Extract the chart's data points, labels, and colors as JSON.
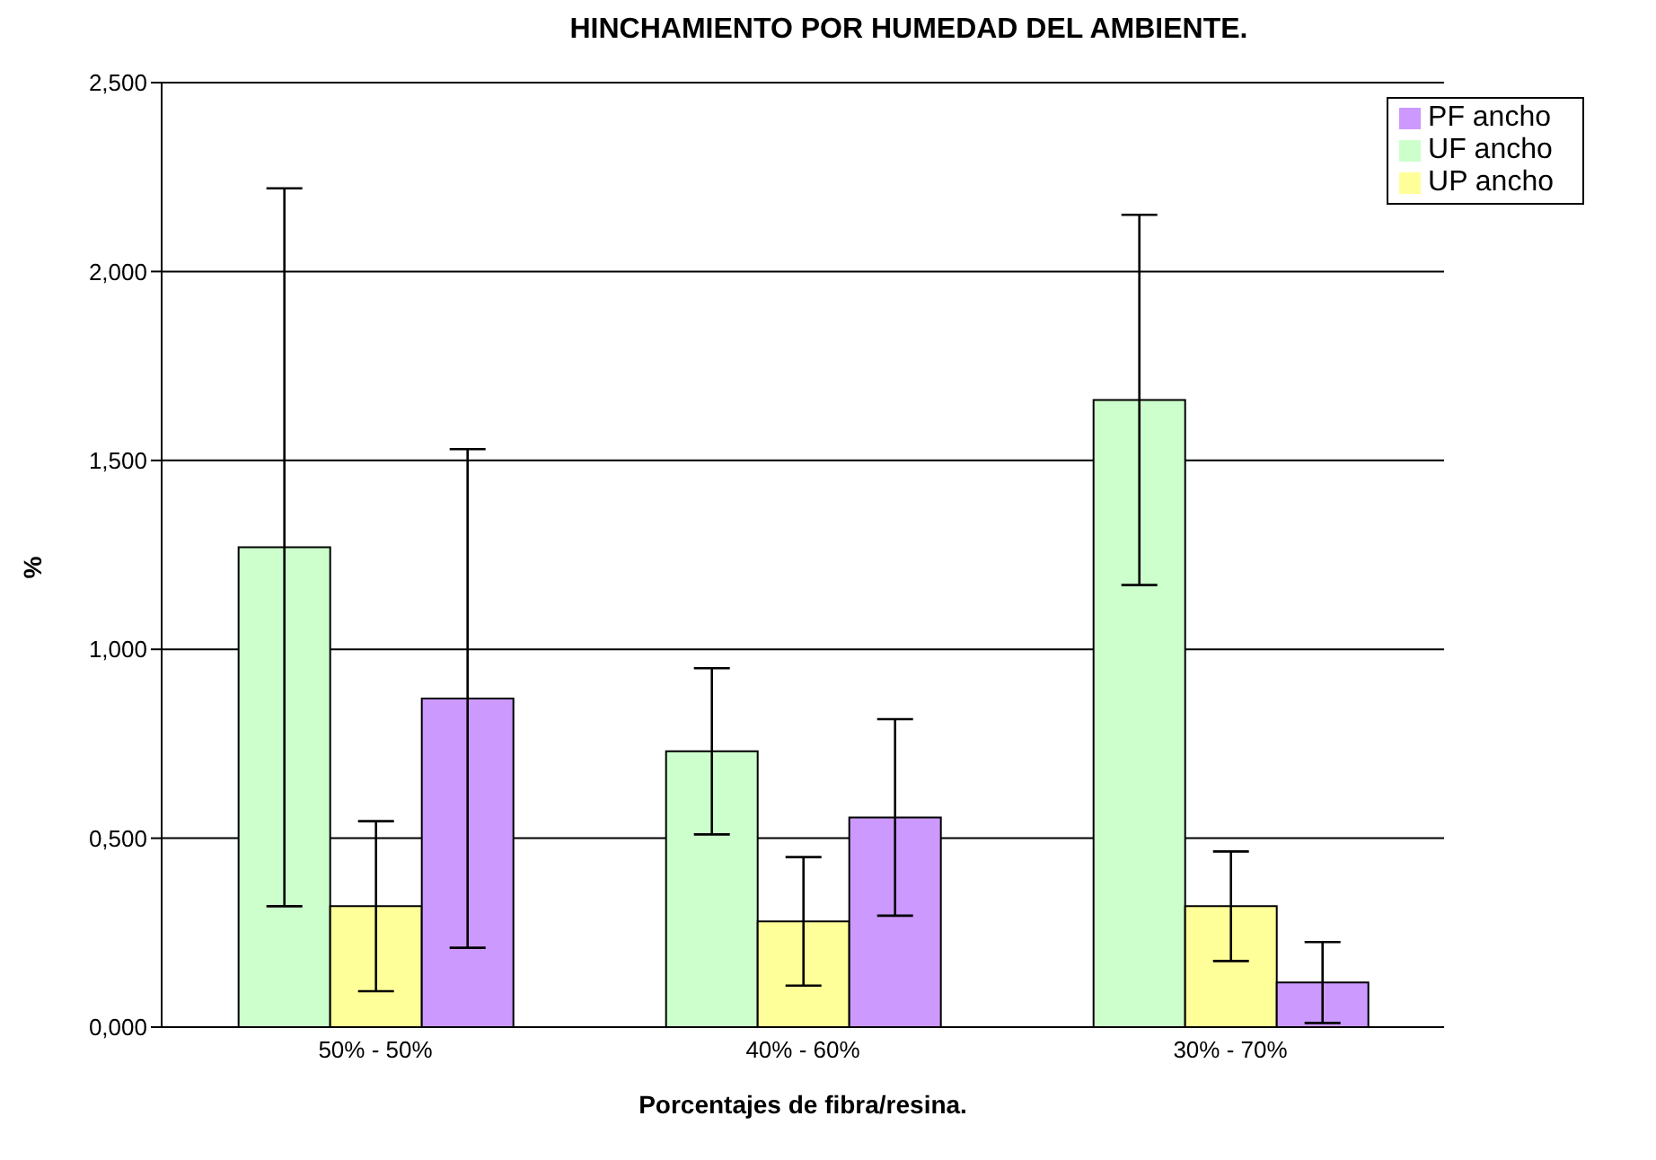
{
  "chart_data": {
    "type": "bar",
    "title": "HINCHAMIENTO POR HUMEDAD DEL AMBIENTE.",
    "xlabel": "Porcentajes de fibra/resina.",
    "ylabel": "%",
    "categories": [
      "50% - 50%",
      "40% - 60%",
      "30% - 70%"
    ],
    "series": [
      {
        "name": "UF ancho",
        "color": "#ccffcc",
        "values": [
          1.27,
          0.73,
          1.66
        ],
        "errors": [
          0.95,
          0.22,
          0.49
        ]
      },
      {
        "name": "UP ancho",
        "color": "#ffff99",
        "values": [
          0.32,
          0.28,
          0.32
        ],
        "errors": [
          0.225,
          0.17,
          0.145
        ]
      },
      {
        "name": "PF ancho",
        "color": "#cc99ff",
        "values": [
          0.87,
          0.555,
          0.118
        ],
        "errors": [
          0.66,
          0.26,
          0.107
        ]
      }
    ],
    "ylim": [
      0,
      2.5
    ],
    "yticks": [
      {
        "value": 0,
        "label": "0,000"
      },
      {
        "value": 0.5,
        "label": "0,500"
      },
      {
        "value": 1,
        "label": "1,000"
      },
      {
        "value": 1.5,
        "label": "1,500"
      },
      {
        "value": 2,
        "label": "2,000"
      },
      {
        "value": 2.5,
        "label": "2,500"
      }
    ],
    "grid": "y",
    "legend": "top right"
  }
}
